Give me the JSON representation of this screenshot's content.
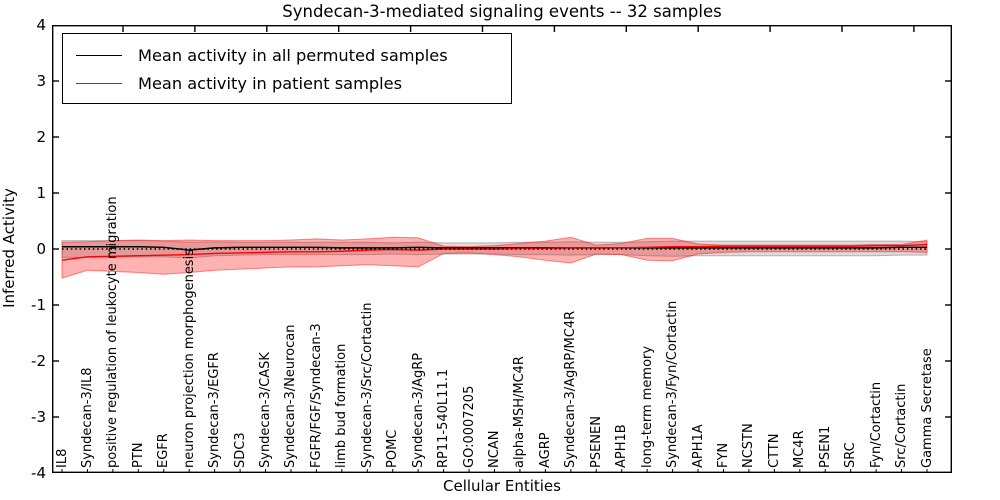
{
  "title": "Syndecan-3-mediated signaling events -- 32 samples",
  "legend": {
    "items": [
      {
        "label": "Mean activity in all permuted samples",
        "color": "#000000"
      },
      {
        "label": "Mean activity in patient samples",
        "color": "#ff0000"
      }
    ]
  },
  "axes": {
    "xlabel": "Cellular Entities",
    "ylabel": "Inferred Activity",
    "ytick_labels": [
      "4",
      "3",
      "2",
      "1",
      "0",
      "-1",
      "-2",
      "-3",
      "-4"
    ]
  },
  "chart_data": {
    "type": "line",
    "title": "Syndecan-3-mediated signaling events -- 32 samples",
    "xlabel": "Cellular Entities",
    "ylabel": "Inferred Activity",
    "ylim": [
      -4,
      4
    ],
    "grid": false,
    "legend_position": "upper left",
    "zero_reference_line": {
      "style": "dotted",
      "color": "#000000",
      "value": 0
    },
    "categories": [
      "IL8",
      "Syndecan-3/IL8",
      "positive regulation of leukocyte migration",
      "PTN",
      "EGFR",
      "neuron projection morphogenesis",
      "Syndecan-3/EGFR",
      "SDC3",
      "Syndecan-3/CASK",
      "Syndecan-3/Neurocan",
      "FGFR/FGF/Syndecan-3",
      "limb bud formation",
      "Syndecan-3/Src/Cortactin",
      "POMC",
      "Syndecan-3/AgRP",
      "RP11-540L11.1",
      "GO:0007205",
      "NCAN",
      "alpha-MSH/MC4R",
      "AGRP",
      "Syndecan-3/AgRP/MC4R",
      "PSENEN",
      "APH1B",
      "long-term memory",
      "Syndecan-3/Fyn/Cortactin",
      "APH1A",
      "FYN",
      "NCSTN",
      "CTTN",
      "MC4R",
      "PSEN1",
      "SRC",
      "Fyn/Cortactin",
      "Src/Cortactin",
      "Gamma Secretase"
    ],
    "series": [
      {
        "name": "Mean activity in all permuted samples",
        "color": "#000000",
        "band_fill": "rgba(128,128,128,0.28)",
        "band_edge": "rgba(90,90,90,0.40)",
        "values": [
          0.04,
          0.04,
          0.04,
          0.04,
          0.03,
          -0.02,
          0.02,
          0.03,
          0.03,
          0.03,
          0.03,
          0.02,
          0.02,
          0.02,
          0.03,
          0.02,
          0.02,
          0.02,
          0.02,
          0.02,
          0.02,
          0.02,
          0.02,
          0.02,
          0.02,
          0.02,
          0.02,
          0.02,
          0.02,
          0.02,
          0.02,
          0.02,
          0.02,
          0.03,
          0.03
        ],
        "band_upper": [
          0.15,
          0.15,
          0.15,
          0.15,
          0.14,
          0.12,
          0.13,
          0.12,
          0.12,
          0.12,
          0.12,
          0.12,
          0.12,
          0.11,
          0.12,
          0.11,
          0.11,
          0.11,
          0.12,
          0.12,
          0.13,
          0.12,
          0.12,
          0.13,
          0.14,
          0.14,
          0.14,
          0.14,
          0.14,
          0.14,
          0.14,
          0.14,
          0.14,
          0.14,
          0.13
        ],
        "band_lower": [
          -0.15,
          -0.15,
          -0.14,
          -0.14,
          -0.14,
          -0.16,
          -0.12,
          -0.11,
          -0.1,
          -0.1,
          -0.1,
          -0.1,
          -0.1,
          -0.09,
          -0.1,
          -0.09,
          -0.09,
          -0.09,
          -0.1,
          -0.1,
          -0.11,
          -0.1,
          -0.1,
          -0.12,
          -0.13,
          -0.12,
          -0.12,
          -0.12,
          -0.12,
          -0.12,
          -0.12,
          -0.12,
          -0.12,
          -0.11,
          -0.11
        ]
      },
      {
        "name": "Mean activity in patient samples",
        "color": "#ff0000",
        "band_fill": "rgba(255,0,0,0.30)",
        "band_edge": "rgba(255,0,0,0.45)",
        "values": [
          -0.2,
          -0.14,
          -0.13,
          -0.12,
          -0.11,
          -0.1,
          -0.08,
          -0.07,
          -0.06,
          -0.05,
          -0.05,
          -0.04,
          -0.02,
          -0.01,
          -0.02,
          0.0,
          0.0,
          0.0,
          0.01,
          0.01,
          0.02,
          0.02,
          0.02,
          0.03,
          0.04,
          0.04,
          0.05,
          0.05,
          0.05,
          0.05,
          0.05,
          0.05,
          0.06,
          0.06,
          0.08
        ],
        "band_upper": [
          0.12,
          0.13,
          0.15,
          0.16,
          0.15,
          0.16,
          0.15,
          0.15,
          0.15,
          0.16,
          0.18,
          0.16,
          0.18,
          0.21,
          0.2,
          0.05,
          0.04,
          0.06,
          0.1,
          0.14,
          0.21,
          0.07,
          0.1,
          0.19,
          0.19,
          0.09,
          0.07,
          0.07,
          0.07,
          0.07,
          0.07,
          0.07,
          0.08,
          0.08,
          0.16
        ],
        "band_lower": [
          -0.52,
          -0.38,
          -0.4,
          -0.42,
          -0.45,
          -0.42,
          -0.38,
          -0.36,
          -0.34,
          -0.32,
          -0.32,
          -0.3,
          -0.28,
          -0.3,
          -0.32,
          -0.08,
          -0.07,
          -0.1,
          -0.14,
          -0.2,
          -0.25,
          -0.09,
          -0.1,
          -0.2,
          -0.21,
          -0.09,
          -0.06,
          -0.05,
          -0.05,
          -0.05,
          -0.05,
          -0.05,
          -0.05,
          -0.05,
          -0.06
        ]
      }
    ]
  }
}
